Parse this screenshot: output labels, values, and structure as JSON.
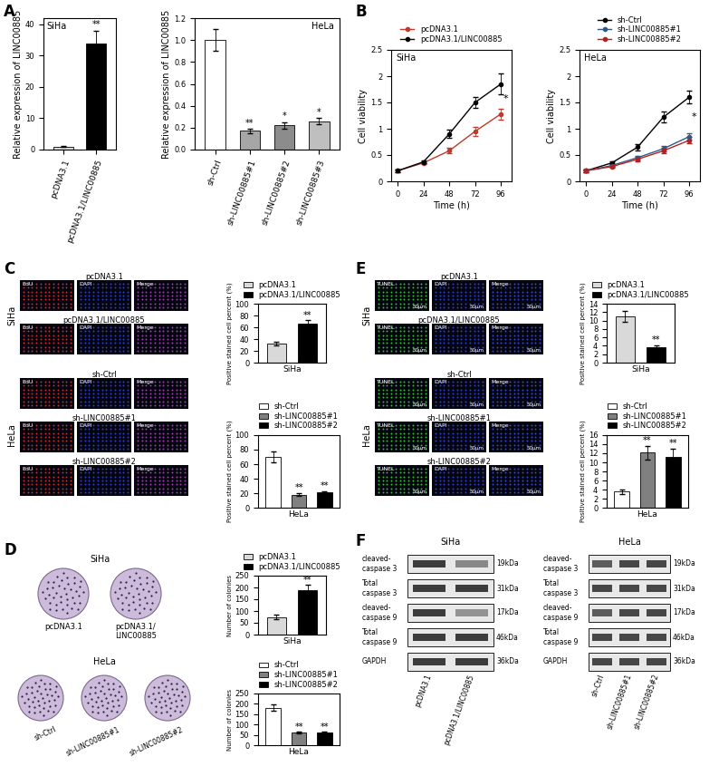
{
  "panel_labels": [
    "A",
    "B",
    "C",
    "D",
    "E",
    "F"
  ],
  "chart_data": [
    {
      "type": "bar",
      "title": "SiHa",
      "categories": [
        "pcDNA3.1",
        "pcDNA3.1/LINC00885"
      ],
      "values": [
        1,
        34
      ],
      "errors": [
        0.15,
        4
      ],
      "significance": [
        null,
        "**"
      ],
      "colors": [
        "#d9d9d9",
        "#000000"
      ],
      "ylabel": "Relative expression of LINC00885",
      "ylim": [
        0,
        42
      ],
      "yticks": [
        0,
        10,
        20,
        30,
        40
      ]
    },
    {
      "type": "bar",
      "title": "HeLa",
      "categories": [
        "sh-Ctrl",
        "sh-LINC00885#1",
        "sh-LINC00885#2",
        "sh-LINC00885#3"
      ],
      "values": [
        1.0,
        0.17,
        0.22,
        0.26
      ],
      "errors": [
        0.1,
        0.02,
        0.03,
        0.03
      ],
      "significance": [
        null,
        "**",
        "*",
        "*"
      ],
      "colors": [
        "#ffffff",
        "#a6a6a6",
        "#8c8c8c",
        "#bfbfbf"
      ],
      "ylabel": "Relative expression of LINC00885",
      "ylim": [
        0,
        1.2
      ],
      "yticks": [
        {
          "value": 0,
          "label": "0.0"
        },
        0.2,
        0.4,
        0.6,
        0.8,
        {
          "value": 1,
          "label": "1.0"
        },
        1.2
      ]
    },
    {
      "type": "line",
      "title": "SiHa",
      "x": [
        0,
        24,
        48,
        72,
        96
      ],
      "xlim": [
        -6,
        106
      ],
      "xticks": [
        0,
        24,
        48,
        72,
        96
      ],
      "ylim": [
        0,
        2.5
      ],
      "yticks": [
        0,
        0.5,
        1,
        1.5,
        2,
        2.5
      ],
      "xlabel": "Time (h)",
      "ylabel": "Cell viability",
      "legend": "top",
      "annotations": [
        "*"
      ],
      "series": [
        {
          "name": "pcDNA3.1",
          "color": "#c0392b",
          "marker": "o",
          "values": [
            0.2,
            0.35,
            0.58,
            0.95,
            1.28
          ],
          "errors": [
            0.02,
            0.03,
            0.05,
            0.08,
            0.1
          ]
        },
        {
          "name": "pcDNA3.1/LINC00885",
          "color": "#000000",
          "marker": "o",
          "values": [
            0.2,
            0.37,
            0.9,
            1.5,
            1.85
          ],
          "errors": [
            0.02,
            0.03,
            0.08,
            0.1,
            0.2
          ]
        }
      ]
    },
    {
      "type": "line",
      "title": "HeLa",
      "x": [
        0,
        24,
        48,
        72,
        96
      ],
      "xlim": [
        -6,
        106
      ],
      "xticks": [
        0,
        24,
        48,
        72,
        96
      ],
      "ylim": [
        0,
        2.5
      ],
      "yticks": [
        0,
        0.5,
        1,
        1.5,
        2,
        2.5
      ],
      "xlabel": "Time (h)",
      "ylabel": "Cell viability",
      "legend": "top",
      "annotations": [
        "*"
      ],
      "series": [
        {
          "name": "sh-Ctrl",
          "color": "#000000",
          "marker": "o",
          "values": [
            0.2,
            0.35,
            0.65,
            1.22,
            1.6
          ],
          "errors": [
            0.02,
            0.03,
            0.06,
            0.1,
            0.12
          ]
        },
        {
          "name": "sh-LINC00885#1",
          "color": "#2e5a87",
          "marker": "o",
          "values": [
            0.2,
            0.3,
            0.45,
            0.62,
            0.85
          ],
          "errors": [
            0.02,
            0.02,
            0.04,
            0.05,
            0.06
          ]
        },
        {
          "name": "sh-LINC00885#2",
          "color": "#b22222",
          "marker": "o",
          "values": [
            0.2,
            0.28,
            0.42,
            0.58,
            0.78
          ],
          "errors": [
            0.02,
            0.02,
            0.04,
            0.05,
            0.06
          ]
        }
      ]
    },
    {
      "type": "bar",
      "xlabel": "SiHa",
      "categories": [
        "pcDNA3.1",
        "pcDNA3.1/LINC00885"
      ],
      "values": [
        32,
        66
      ],
      "errors": [
        3,
        6
      ],
      "significance": [
        null,
        "**"
      ],
      "colors": [
        "#d9d9d9",
        "#000000"
      ],
      "ylabel": "Positive stained cell percent (%)",
      "ylim": [
        0,
        100
      ],
      "yticks": [
        0,
        20,
        40,
        60,
        80,
        100
      ],
      "legend": "top",
      "tick_labels": "y"
    },
    {
      "type": "bar",
      "xlabel": "HeLa",
      "categories": [
        "sh-Ctrl",
        "sh-LINC00885#1",
        "sh-LINC00885#2"
      ],
      "values": [
        70,
        18,
        21
      ],
      "errors": [
        7,
        2,
        2
      ],
      "significance": [
        null,
        "**",
        "**"
      ],
      "colors": [
        "#ffffff",
        "#808080",
        "#000000"
      ],
      "ylabel": "Positive stained cell percent (%)",
      "ylim": [
        0,
        100
      ],
      "yticks": [
        0,
        20,
        40,
        60,
        80,
        100
      ],
      "legend": "top",
      "tick_labels": "y"
    },
    {
      "type": "bar",
      "xlabel": "SiHa",
      "categories": [
        "pcDNA3.1",
        "pcDNA3.1/LINC00885"
      ],
      "values": [
        75,
        190
      ],
      "errors": [
        8,
        20
      ],
      "significance": [
        null,
        "**"
      ],
      "colors": [
        "#d9d9d9",
        "#000000"
      ],
      "ylabel": "Number of colonies",
      "ylim": [
        0,
        250
      ],
      "yticks": [
        0,
        50,
        100,
        150,
        200,
        250
      ],
      "legend": "top",
      "tick_labels": "y"
    },
    {
      "type": "bar",
      "xlabel": "HeLa",
      "categories": [
        "sh-Ctrl",
        "sh-LINC00885#1",
        "sh-LINC00885#2"
      ],
      "values": [
        182,
        60,
        60
      ],
      "errors": [
        15,
        5,
        5
      ],
      "significance": [
        null,
        "**",
        "**"
      ],
      "colors": [
        "#ffffff",
        "#808080",
        "#000000"
      ],
      "ylabel": "Number of colonies",
      "ylim": [
        0,
        250
      ],
      "yticks": [
        0,
        50,
        100,
        150,
        200,
        250
      ],
      "legend": "top",
      "tick_labels": "y"
    },
    {
      "type": "bar",
      "xlabel": "SiHa",
      "categories": [
        "pcDNA3.1",
        "pcDNA3.1/LINC00885"
      ],
      "values": [
        11,
        3.7
      ],
      "errors": [
        1.2,
        0.5
      ],
      "significance": [
        null,
        "**"
      ],
      "colors": [
        "#d9d9d9",
        "#000000"
      ],
      "ylabel": "Positive stained cell percent (%)",
      "ylim": [
        0,
        14
      ],
      "yticks": [
        0,
        2,
        4,
        6,
        8,
        10,
        12,
        14
      ],
      "legend": "top",
      "tick_labels": "y"
    },
    {
      "type": "bar",
      "xlabel": "HeLa",
      "categories": [
        "sh-Ctrl",
        "sh-LINC00885#1",
        "sh-LINC00885#2"
      ],
      "values": [
        3.6,
        12.2,
        11.2
      ],
      "errors": [
        0.5,
        1.5,
        1.8
      ],
      "significance": [
        null,
        "**",
        "**"
      ],
      "colors": [
        "#ffffff",
        "#808080",
        "#000000"
      ],
      "ylabel": "Positive stained cell percent (%)",
      "ylim": [
        0,
        16
      ],
      "yticks": [
        0,
        2,
        4,
        6,
        8,
        10,
        12,
        14,
        16
      ],
      "legend": "top",
      "tick_labels": "y"
    }
  ],
  "images": [
    {
      "channels": [
        "EdU",
        "DAPI",
        "Merge"
      ],
      "colors": [
        "#d02a2a",
        "#3040d0",
        "#a040b0"
      ],
      "groups": [
        {
          "cell": "SiHa",
          "conditions": [
            "pcDNA3.1",
            "pcDNA3.1/LINC00885"
          ]
        },
        {
          "cell": "HeLa",
          "conditions": [
            "sh-Ctrl",
            "sh-LINC00885#1",
            "sh-LINC00885#2"
          ]
        }
      ]
    },
    {
      "channels": [
        "TUNEL",
        "DAPI",
        "Merge"
      ],
      "colors": [
        "#30c030",
        "#3040d0",
        "#3848d0"
      ],
      "scale_bar": "50μm",
      "groups": [
        {
          "cell": "SiHa",
          "conditions": [
            "pcDNA3.1",
            "pcDNA3.1/LINC00885"
          ]
        },
        {
          "cell": "HeLa",
          "conditions": [
            "sh-Ctrl",
            "sh-LINC00885#1",
            "sh-LINC00885#2"
          ]
        }
      ]
    }
  ],
  "colonies": {
    "color": "#cdbbdc",
    "groups": [
      {
        "cell": "SiHa",
        "conditions": [
          "pcDNA3.1",
          "pcDNA3.1/\nLINC00885"
        ]
      },
      {
        "cell": "HeLa",
        "conditions": [
          "sh-Ctrl",
          "sh-LINC00885#1",
          "sh-LINC00885#2"
        ]
      }
    ]
  },
  "blots": {
    "rows": [
      "cleaved-\ncaspase 3",
      "Total\ncaspase 3",
      "cleaved-\ncaspase 9",
      "Total\ncaspase 9",
      "GAPDH"
    ],
    "sizes": [
      "19kDa",
      "31kDa",
      "17kDa",
      "46kDa",
      "36kDa"
    ],
    "groups": [
      {
        "cell": "SiHa",
        "lanes": [
          "pcDNA3.1",
          "pcDNA3.1/LINC00885"
        ],
        "intensity": [
          [
            0.9,
            0.55
          ],
          [
            0.9,
            0.9
          ],
          [
            0.9,
            0.5
          ],
          [
            0.9,
            0.9
          ],
          [
            0.9,
            0.9
          ]
        ]
      },
      {
        "cell": "HeLa",
        "lanes": [
          "sh-Ctrl",
          "sh-LINC00885#1",
          "sh-LINC00885#2"
        ],
        "intensity": [
          [
            0.75,
            0.85,
            0.85
          ],
          [
            0.85,
            0.85,
            0.85
          ],
          [
            0.75,
            0.85,
            0.85
          ],
          [
            0.85,
            0.85,
            0.85
          ],
          [
            0.85,
            0.85,
            0.85
          ]
        ]
      }
    ]
  }
}
